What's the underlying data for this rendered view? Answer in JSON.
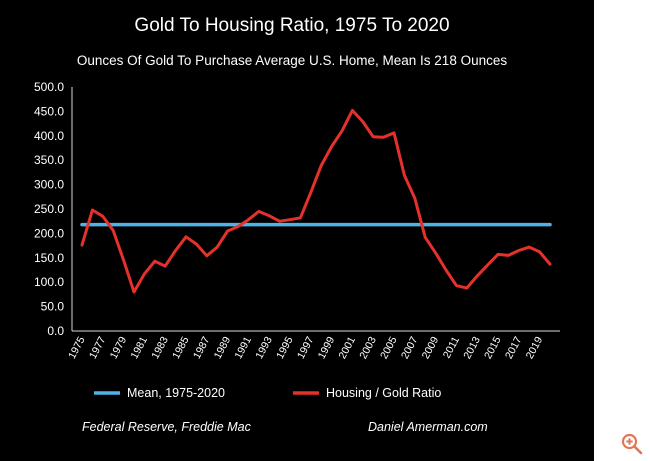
{
  "chart_data": {
    "type": "line",
    "title": "Gold To Housing Ratio, 1975 To 2020",
    "subtitle": "Ounces Of Gold To Purchase Average U.S. Home, Mean Is 218 Ounces",
    "ylim": [
      0,
      500
    ],
    "yticks": [
      "0.0",
      "50.0",
      "100.0",
      "150.0",
      "200.0",
      "250.0",
      "300.0",
      "350.0",
      "400.0",
      "450.0",
      "500.0"
    ],
    "xticks": [
      "1975",
      "1977",
      "1979",
      "1981",
      "1983",
      "1985",
      "1987",
      "1989",
      "1991",
      "1993",
      "1995",
      "1997",
      "1999",
      "2001",
      "2003",
      "2005",
      "2007",
      "2009",
      "2011",
      "2013",
      "2015",
      "2017",
      "2019"
    ],
    "x": [
      1975,
      1976,
      1977,
      1978,
      1979,
      1980,
      1981,
      1982,
      1983,
      1984,
      1985,
      1986,
      1987,
      1988,
      1989,
      1990,
      1991,
      1992,
      1993,
      1994,
      1995,
      1996,
      1997,
      1998,
      1999,
      2000,
      2001,
      2002,
      2003,
      2004,
      2005,
      2006,
      2007,
      2008,
      2009,
      2010,
      2011,
      2012,
      2013,
      2014,
      2015,
      2016,
      2017,
      2018,
      2019,
      2020
    ],
    "series": [
      {
        "name": "Mean, 1975-2020",
        "color": "#4FB3E8",
        "values": [
          218,
          218,
          218,
          218,
          218,
          218,
          218,
          218,
          218,
          218,
          218,
          218,
          218,
          218,
          218,
          218,
          218,
          218,
          218,
          218,
          218,
          218,
          218,
          218,
          218,
          218,
          218,
          218,
          218,
          218,
          218,
          218,
          218,
          218,
          218,
          218,
          218,
          218,
          218,
          218,
          218,
          218,
          218,
          218,
          218,
          218
        ]
      },
      {
        "name": "Housing / Gold Ratio",
        "color": "#E5312B",
        "values": [
          176,
          248,
          235,
          206,
          145,
          80,
          117,
          143,
          133,
          165,
          193,
          178,
          154,
          172,
          205,
          214,
          228,
          245,
          236,
          225,
          228,
          232,
          284,
          339,
          378,
          410,
          452,
          429,
          398,
          397,
          406,
          319,
          272,
          192,
          160,
          125,
          93,
          88,
          113,
          135,
          157,
          155,
          165,
          172,
          162,
          137
        ]
      }
    ],
    "legend": {
      "placement": "bottom-center"
    }
  },
  "footer": {
    "source_left": "Federal Reserve, Freddie Mac",
    "source_right": "Daniel Amerman.com"
  },
  "icons": {
    "zoom": "zoom-in-icon",
    "zoom_color": "#E0775A"
  }
}
